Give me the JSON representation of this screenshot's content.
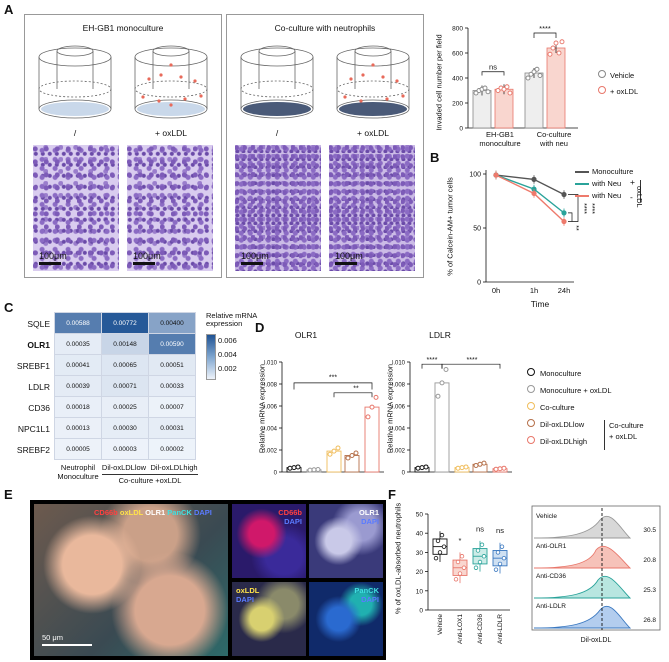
{
  "panels": {
    "A": "A",
    "B": "B",
    "C": "C",
    "D": "D",
    "E": "E",
    "F": "F"
  },
  "A": {
    "mono_title": "EH-GB1 monoculture",
    "coc_title": "Co-culture with neutrophils",
    "cond_left": "/",
    "cond_right": "+ oxLDL",
    "scale": "100μm",
    "chart": {
      "ylabel": "Invaded cell number per field",
      "yticks": [
        "0",
        "200",
        "400",
        "600",
        "800"
      ],
      "groups": [
        "EH-GB1\nmonoculture",
        "Co-culture\nwith neu"
      ],
      "group1": "EH-GB1",
      "group1b": "monoculture",
      "group2": "Co-culture",
      "group2b": "with neu",
      "sig_ns": "ns",
      "sig_star": "****",
      "legend_vehicle": "Vehicle",
      "legend_oxldl": "+ oxLDL"
    }
  },
  "chart_data": [
    {
      "type": "bar",
      "ylabel": "Invaded cell number per field",
      "categories": [
        "EH-GB1 monoculture",
        "Co-culture with neu"
      ],
      "ylim": [
        0,
        800
      ],
      "series": [
        {
          "name": "Vehicle",
          "values": [
            300,
            440
          ]
        },
        {
          "name": "+ oxLDL",
          "values": [
            310,
            640
          ]
        }
      ]
    },
    {
      "type": "line",
      "ylabel": "% of Calcein-AM+ tumor cells",
      "xlabel": "Time",
      "x": [
        "0h",
        "1h",
        "24h"
      ],
      "ylim": [
        0,
        100
      ],
      "series": [
        {
          "name": "Monoculture",
          "values": [
            99,
            95,
            81
          ]
        },
        {
          "name": "with Neu",
          "values": [
            99,
            86,
            64
          ]
        },
        {
          "name": "with Neu",
          "values": [
            99,
            82,
            56
          ]
        }
      ]
    },
    {
      "type": "bar",
      "title": "OLR1",
      "ylabel": "Relative mRNA expression",
      "categories": [
        "Monoculture",
        "Monoculture + oxLDL",
        "Co-culture",
        "Dil-oxLDLlow",
        "Dil-oxLDLhigh"
      ],
      "ylim": [
        0,
        0.01
      ],
      "values": [
        0.0004,
        0.0002,
        0.0019,
        0.0015,
        0.0059
      ]
    },
    {
      "type": "bar",
      "title": "LDLR",
      "ylabel": "Relative mRNA expression",
      "categories": [
        "Monoculture",
        "Monoculture + oxLDL",
        "Co-culture",
        "Dil-oxLDLlow",
        "Dil-oxLDLhigh"
      ],
      "ylim": [
        0,
        0.01
      ],
      "values": [
        0.0004,
        0.0081,
        0.0004,
        0.0007,
        0.0003
      ]
    },
    {
      "type": "bar",
      "ylabel": "% of oxLDL-absorbed neutrophils",
      "categories": [
        "Vehicle",
        "Anti-LOX1",
        "Anti-CD36",
        "Anti-LDLR"
      ],
      "ylim": [
        0,
        50
      ],
      "values": [
        33,
        22,
        28,
        27
      ]
    }
  ],
  "B": {
    "ylabel": "% of Calcein-AM+ tumor cells",
    "xlabel": "Time",
    "xticks": [
      "0h",
      "1h",
      "24h"
    ],
    "yticks": [
      "0",
      "50",
      "100"
    ],
    "legend": [
      "Monoculture",
      "with Neu",
      "with Neu"
    ],
    "plus": "+",
    "minus": "-",
    "oxldl": "oxLDL",
    "sig1": "****",
    "sig2": "****",
    "sig3": "**"
  },
  "C": {
    "rows": [
      "SQLE",
      "OLR1",
      "SREBF1",
      "LDLR",
      "CD36",
      "NPC1L1",
      "SREBF2"
    ],
    "cells": [
      [
        "0.00588",
        "0.00772",
        "0.00400"
      ],
      [
        "0.00035",
        "0.00148",
        "0.00590"
      ],
      [
        "0.00041",
        "0.00065",
        "0.00051"
      ],
      [
        "0.00039",
        "0.00071",
        "0.00033"
      ],
      [
        "0.00018",
        "0.00025",
        "0.00007"
      ],
      [
        "0.00013",
        "0.00030",
        "0.00031"
      ],
      [
        "0.00005",
        "0.00003",
        "0.00002"
      ]
    ],
    "col1a": "Neutrophil",
    "col1b": "Monoculture",
    "col2": "Dil-oxLDLlow",
    "col3": "Dil-oxLDLhigh",
    "coc_group": "Co-culture +oxLDL",
    "legend_title": "Relative mRNA expression",
    "legend_ticks": [
      "0.006",
      "0.004",
      "0.002"
    ]
  },
  "D": {
    "title1": "OLR1",
    "title2": "LDLR",
    "ylabel": "Relative mRNA expression",
    "yticks": [
      "0",
      "0.002",
      "0.004",
      "0.006",
      "0.008",
      "0.010"
    ],
    "sig_a": "***",
    "sig_b": "**",
    "sig_c": "****",
    "sig_d": "****",
    "legend": [
      "Monoculture",
      "Monoculture + oxLDL",
      "Co-culture",
      "Dil-oxLDLlow",
      "Dil-oxLDLhigh"
    ],
    "coc1": "Co-culture",
    "coc2": "+ oxLDL"
  },
  "E": {
    "merge_label": [
      "CD66b",
      "oxLDL",
      "OLR1",
      "PanCK",
      "DAPI"
    ],
    "cd66b": "CD66b",
    "dapi": "DAPI",
    "olr1": "OLR1",
    "oxldl": "oxLDL",
    "panck": "PanCK",
    "scale": "50 μm"
  },
  "F": {
    "ylabel": "% of oxLDL-absorbed neutrophils",
    "yticks": [
      "0",
      "10",
      "20",
      "30",
      "40",
      "50"
    ],
    "cats": [
      "Vehicle",
      "Anti-LOX1",
      "Anti-CD36",
      "Anti-LDLR"
    ],
    "sig": [
      "*",
      "ns",
      "ns"
    ],
    "hist_labels": [
      "Vehicle",
      "Anti-OLR1",
      "Anti-CD36",
      "Anti-LDLR"
    ],
    "hist_values": [
      "30.5",
      "20.8",
      "25.3",
      "26.8"
    ],
    "hist_xlabel": "Dil-oxLDL"
  }
}
